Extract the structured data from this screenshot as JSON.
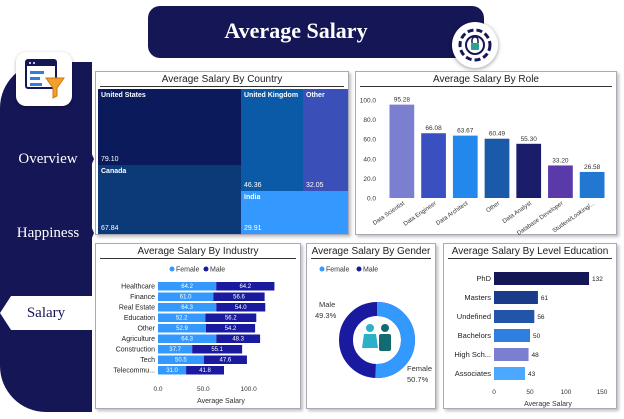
{
  "header": {
    "title": "Average Salary"
  },
  "sidebar": {
    "items": [
      {
        "label": "Overview"
      },
      {
        "label": "Happiness"
      },
      {
        "label": "Salary"
      }
    ]
  },
  "panels": {
    "country": {
      "title": "Average Salary By Country"
    },
    "role": {
      "title": "Average Salary By Role"
    },
    "industry": {
      "title": "Average Salary By Industry"
    },
    "gender": {
      "title": "Average Salary By Gender"
    },
    "education": {
      "title": "Average Salary By Level Education"
    }
  },
  "colors": {
    "navy": "#151656",
    "blue": "#2f7fe0",
    "light_blue": "#3399ff",
    "dark_blue": "#1a1aa0"
  },
  "chart_data": [
    {
      "type": "treemap",
      "title": "Average Salary By Country",
      "categories": [
        "United States",
        "Canada",
        "United Kingdom",
        "Other",
        "India"
      ],
      "values": [
        79.1,
        67.84,
        46.36,
        32.05,
        29.91
      ],
      "colors": [
        "#0b1a5a",
        "#0c3a78",
        "#0a5aa8",
        "#3a4fb8",
        "#3399ff"
      ]
    },
    {
      "type": "bar",
      "title": "Average Salary By Role",
      "categories": [
        "Data Scientist",
        "Data Engineer",
        "Data Architect",
        "Other",
        "Data Analyst",
        "Database Developer",
        "Student/Looking/..."
      ],
      "values": [
        95.28,
        66.08,
        63.67,
        60.49,
        55.3,
        33.2,
        26.58
      ],
      "colors": [
        "#7b7fd0",
        "#3a50c0",
        "#2288ee",
        "#1a5aa8",
        "#1a1e6a",
        "#5a3aa8",
        "#2277d0"
      ],
      "ylim": [
        0,
        100
      ],
      "yticks": [
        "0.0",
        "20.0",
        "40.0",
        "60.0",
        "80.0",
        "100.0"
      ]
    },
    {
      "type": "bar",
      "orientation": "horizontal",
      "stacked": true,
      "title": "Average Salary By Industry",
      "categories": [
        "Healthcare",
        "Finance",
        "Real Estate",
        "Education",
        "Other",
        "Agriculture",
        "Construction",
        "Tech",
        "Telecommu..."
      ],
      "series": [
        {
          "name": "Female",
          "values": [
            64.2,
            61.0,
            64.3,
            52.2,
            52.9,
            64.3,
            37.7,
            50.5,
            31.0
          ],
          "color": "#3399ff"
        },
        {
          "name": "Male",
          "values": [
            64.2,
            56.6,
            54.0,
            56.2,
            54.2,
            48.3,
            55.1,
            47.6,
            41.8
          ],
          "color": "#1a1aa0"
        }
      ],
      "xlabel": "Average Salary",
      "xticks": [
        "0.0",
        "50.0",
        "100.0"
      ],
      "xlim": [
        0,
        150
      ]
    },
    {
      "type": "pie",
      "donut": true,
      "title": "Average Salary By Gender",
      "categories": [
        "Male",
        "Female"
      ],
      "values": [
        49.3,
        50.7
      ],
      "labels": [
        "49.3%",
        "50.7%"
      ],
      "colors": [
        "#1a1aa0",
        "#3399ff"
      ],
      "legend": [
        "Female",
        "Male"
      ]
    },
    {
      "type": "bar",
      "orientation": "horizontal",
      "title": "Average Salary By Level Education",
      "categories": [
        "PhD",
        "Masters",
        "Undefined",
        "Bachelors",
        "High Sch...",
        "Associates"
      ],
      "values": [
        132,
        61,
        56,
        50,
        48,
        43
      ],
      "colors": [
        "#151656",
        "#1a3a8a",
        "#2255aa",
        "#2f7fe0",
        "#7b7fd0",
        "#4aa8ff"
      ],
      "xlabel": "Average Salary",
      "xticks": [
        "0",
        "50",
        "100",
        "150"
      ],
      "xlim": [
        0,
        150
      ]
    }
  ]
}
